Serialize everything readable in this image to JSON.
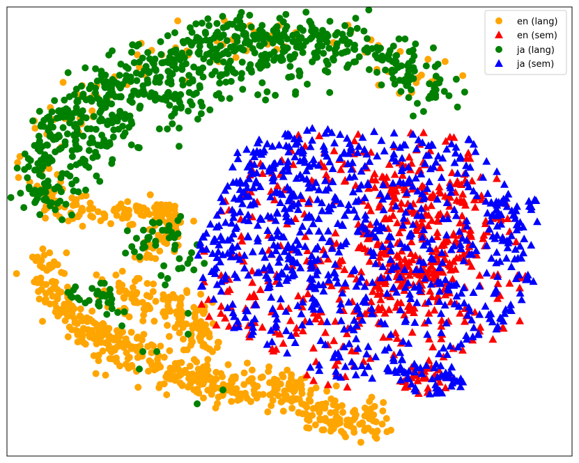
{
  "chart_data": {
    "type": "scatter",
    "title": "",
    "xlabel": "",
    "ylabel": "",
    "xlim": [
      -100,
      100
    ],
    "ylim": [
      -80,
      80
    ],
    "grid": false,
    "axis_ticks": false,
    "legend_position": "top-right",
    "series": [
      {
        "name": "en (lang)",
        "color": "#ffa500",
        "marker": "circle",
        "approx_count": 1200,
        "regions": [
          "left-middle band",
          "bottom-left tail stretching to lower right",
          "scattered inside green arc"
        ]
      },
      {
        "name": "en (sem)",
        "color": "#ff0000",
        "marker": "triangle",
        "approx_count": 1000,
        "regions": [
          "right cluster, concentrated toward center-right",
          "mostly overlapped by blue"
        ]
      },
      {
        "name": "ja (lang)",
        "color": "#008000",
        "marker": "circle",
        "approx_count": 1000,
        "regions": [
          "top arc from upper left sweeping to upper right",
          "patches within orange band"
        ]
      },
      {
        "name": "ja (sem)",
        "color": "#0000ff",
        "marker": "triangle",
        "approx_count": 1000,
        "regions": [
          "large right cluster spanning center to right edge"
        ]
      }
    ]
  },
  "legend": {
    "items": [
      {
        "label": "en (lang)",
        "color": "#ffa500",
        "marker": "circle"
      },
      {
        "label": "en (sem)",
        "color": "#ff0000",
        "marker": "triangle"
      },
      {
        "label": "ja (lang)",
        "color": "#008000",
        "marker": "circle"
      },
      {
        "label": "ja (sem)",
        "color": "#0000ff",
        "marker": "triangle"
      }
    ]
  }
}
